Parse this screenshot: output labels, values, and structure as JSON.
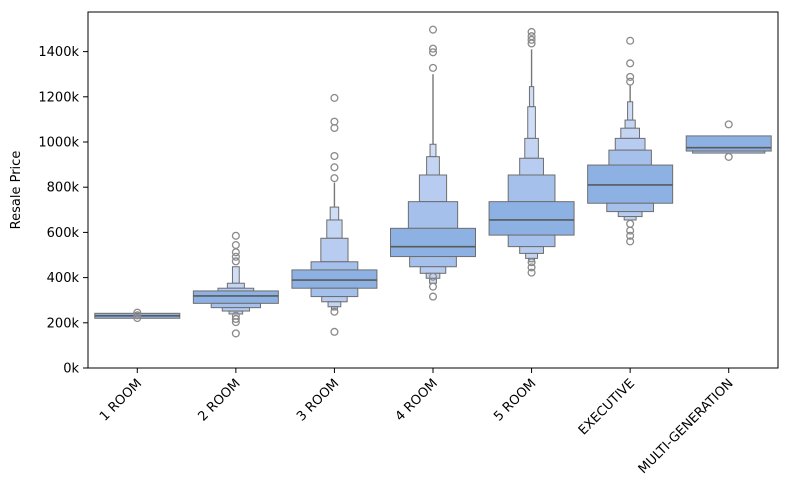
{
  "chart_data": {
    "type": "boxen",
    "title": "",
    "xlabel": "",
    "ylabel": "Resale Price",
    "grid": false,
    "legend": "none",
    "y_ticks_k": [
      0,
      200,
      400,
      600,
      800,
      1000,
      1200,
      1400
    ],
    "y_tick_labels": [
      "0k",
      "200k",
      "400k",
      "600k",
      "800k",
      "1000k",
      "1200k",
      "1400k"
    ],
    "ylim_k": [
      0,
      1578
    ],
    "x_tick_rotation_deg": 45,
    "categories": [
      {
        "label": "1 ROOM",
        "median_k": 231,
        "boxes": [
          {
            "lo": 220,
            "hi": 242,
            "w": 1.0
          }
        ],
        "outliers_k": [
          245,
          233,
          221
        ]
      },
      {
        "label": "2 ROOM",
        "median_k": 319,
        "boxes": [
          {
            "lo": 375,
            "hi": 448,
            "w": 0.08
          },
          {
            "lo": 353,
            "hi": 375,
            "w": 0.2
          },
          {
            "lo": 341,
            "hi": 353,
            "w": 0.42
          },
          {
            "lo": 286,
            "hi": 341,
            "w": 1.0
          },
          {
            "lo": 267,
            "hi": 286,
            "w": 0.58
          },
          {
            "lo": 252,
            "hi": 267,
            "w": 0.32
          },
          {
            "lo": 239,
            "hi": 252,
            "w": 0.16
          }
        ],
        "outliers_k": [
          585,
          544,
          512,
          492,
          472,
          231,
          217,
          203,
          153
        ]
      },
      {
        "label": "3 ROOM",
        "median_k": 389,
        "spine": {
          "lo": 712,
          "hi": 820
        },
        "boxes": [
          {
            "lo": 655,
            "hi": 712,
            "w": 0.1
          },
          {
            "lo": 574,
            "hi": 655,
            "w": 0.18
          },
          {
            "lo": 470,
            "hi": 574,
            "w": 0.32
          },
          {
            "lo": 434,
            "hi": 470,
            "w": 0.55
          },
          {
            "lo": 353,
            "hi": 434,
            "w": 1.0
          },
          {
            "lo": 316,
            "hi": 353,
            "w": 0.55
          },
          {
            "lo": 293,
            "hi": 316,
            "w": 0.3
          },
          {
            "lo": 271,
            "hi": 293,
            "w": 0.15
          },
          {
            "lo": 257,
            "hi": 271,
            "w": 0.07
          }
        ],
        "outliers_k": [
          1195,
          1090,
          1062,
          938,
          888,
          840,
          249,
          160
        ]
      },
      {
        "label": "4 ROOM",
        "median_k": 537,
        "spine": {
          "lo": 990,
          "hi": 1300
        },
        "boxes": [
          {
            "lo": 935,
            "hi": 990,
            "w": 0.07
          },
          {
            "lo": 854,
            "hi": 935,
            "w": 0.15
          },
          {
            "lo": 736,
            "hi": 854,
            "w": 0.32
          },
          {
            "lo": 618,
            "hi": 736,
            "w": 0.58
          },
          {
            "lo": 493,
            "hi": 618,
            "w": 1.0
          },
          {
            "lo": 448,
            "hi": 493,
            "w": 0.55
          },
          {
            "lo": 419,
            "hi": 448,
            "w": 0.3
          },
          {
            "lo": 397,
            "hi": 419,
            "w": 0.16
          },
          {
            "lo": 375,
            "hi": 397,
            "w": 0.08
          }
        ],
        "outliers_k": [
          1497,
          1413,
          1397,
          1328,
          404,
          360,
          316
        ]
      },
      {
        "label": "5 ROOM",
        "median_k": 655,
        "spine": {
          "lo": 1245,
          "hi": 1410
        },
        "boxes": [
          {
            "lo": 1156,
            "hi": 1245,
            "w": 0.05
          },
          {
            "lo": 1016,
            "hi": 1156,
            "w": 0.09
          },
          {
            "lo": 928,
            "hi": 1016,
            "w": 0.16
          },
          {
            "lo": 854,
            "hi": 928,
            "w": 0.28
          },
          {
            "lo": 736,
            "hi": 854,
            "w": 0.55
          },
          {
            "lo": 588,
            "hi": 736,
            "w": 1.0
          },
          {
            "lo": 537,
            "hi": 588,
            "w": 0.55
          },
          {
            "lo": 507,
            "hi": 537,
            "w": 0.28
          },
          {
            "lo": 485,
            "hi": 507,
            "w": 0.14
          },
          {
            "lo": 470,
            "hi": 485,
            "w": 0.07
          }
        ],
        "outliers_k": [
          1487,
          1468,
          1452,
          1436,
          468,
          445,
          422
        ]
      },
      {
        "label": "EXECUTIVE",
        "median_k": 810,
        "spine": {
          "lo": 1178,
          "hi": 1252
        },
        "boxes": [
          {
            "lo": 1097,
            "hi": 1178,
            "w": 0.06
          },
          {
            "lo": 1061,
            "hi": 1097,
            "w": 0.12
          },
          {
            "lo": 1016,
            "hi": 1061,
            "w": 0.22
          },
          {
            "lo": 964,
            "hi": 1016,
            "w": 0.35
          },
          {
            "lo": 898,
            "hi": 964,
            "w": 0.5
          },
          {
            "lo": 729,
            "hi": 898,
            "w": 1.0
          },
          {
            "lo": 692,
            "hi": 729,
            "w": 0.55
          },
          {
            "lo": 670,
            "hi": 692,
            "w": 0.28
          },
          {
            "lo": 655,
            "hi": 670,
            "w": 0.14
          }
        ],
        "outliers_k": [
          1448,
          1348,
          1288,
          1267,
          638,
          608,
          585,
          560
        ]
      },
      {
        "label": "MULTI-GENERATION",
        "median_k": 975,
        "boxes": [
          {
            "lo": 960,
            "hi": 1027,
            "w": 1.0
          },
          {
            "lo": 951,
            "hi": 960,
            "w": 0.85
          }
        ],
        "outliers_k": [
          1078,
          934
        ]
      }
    ],
    "colors": {
      "box_fill_levels": [
        "#8db1e2",
        "#a5c0ea",
        "#b7ccf0",
        "#c4d5f4",
        "#cfddf7"
      ],
      "box_edge": "#6e6e6e",
      "median_line": "#5a5a5a",
      "outlier_stroke": "#8a8a8a",
      "spine_line": "#777777",
      "axis": "#000000",
      "background": "#ffffff"
    }
  }
}
